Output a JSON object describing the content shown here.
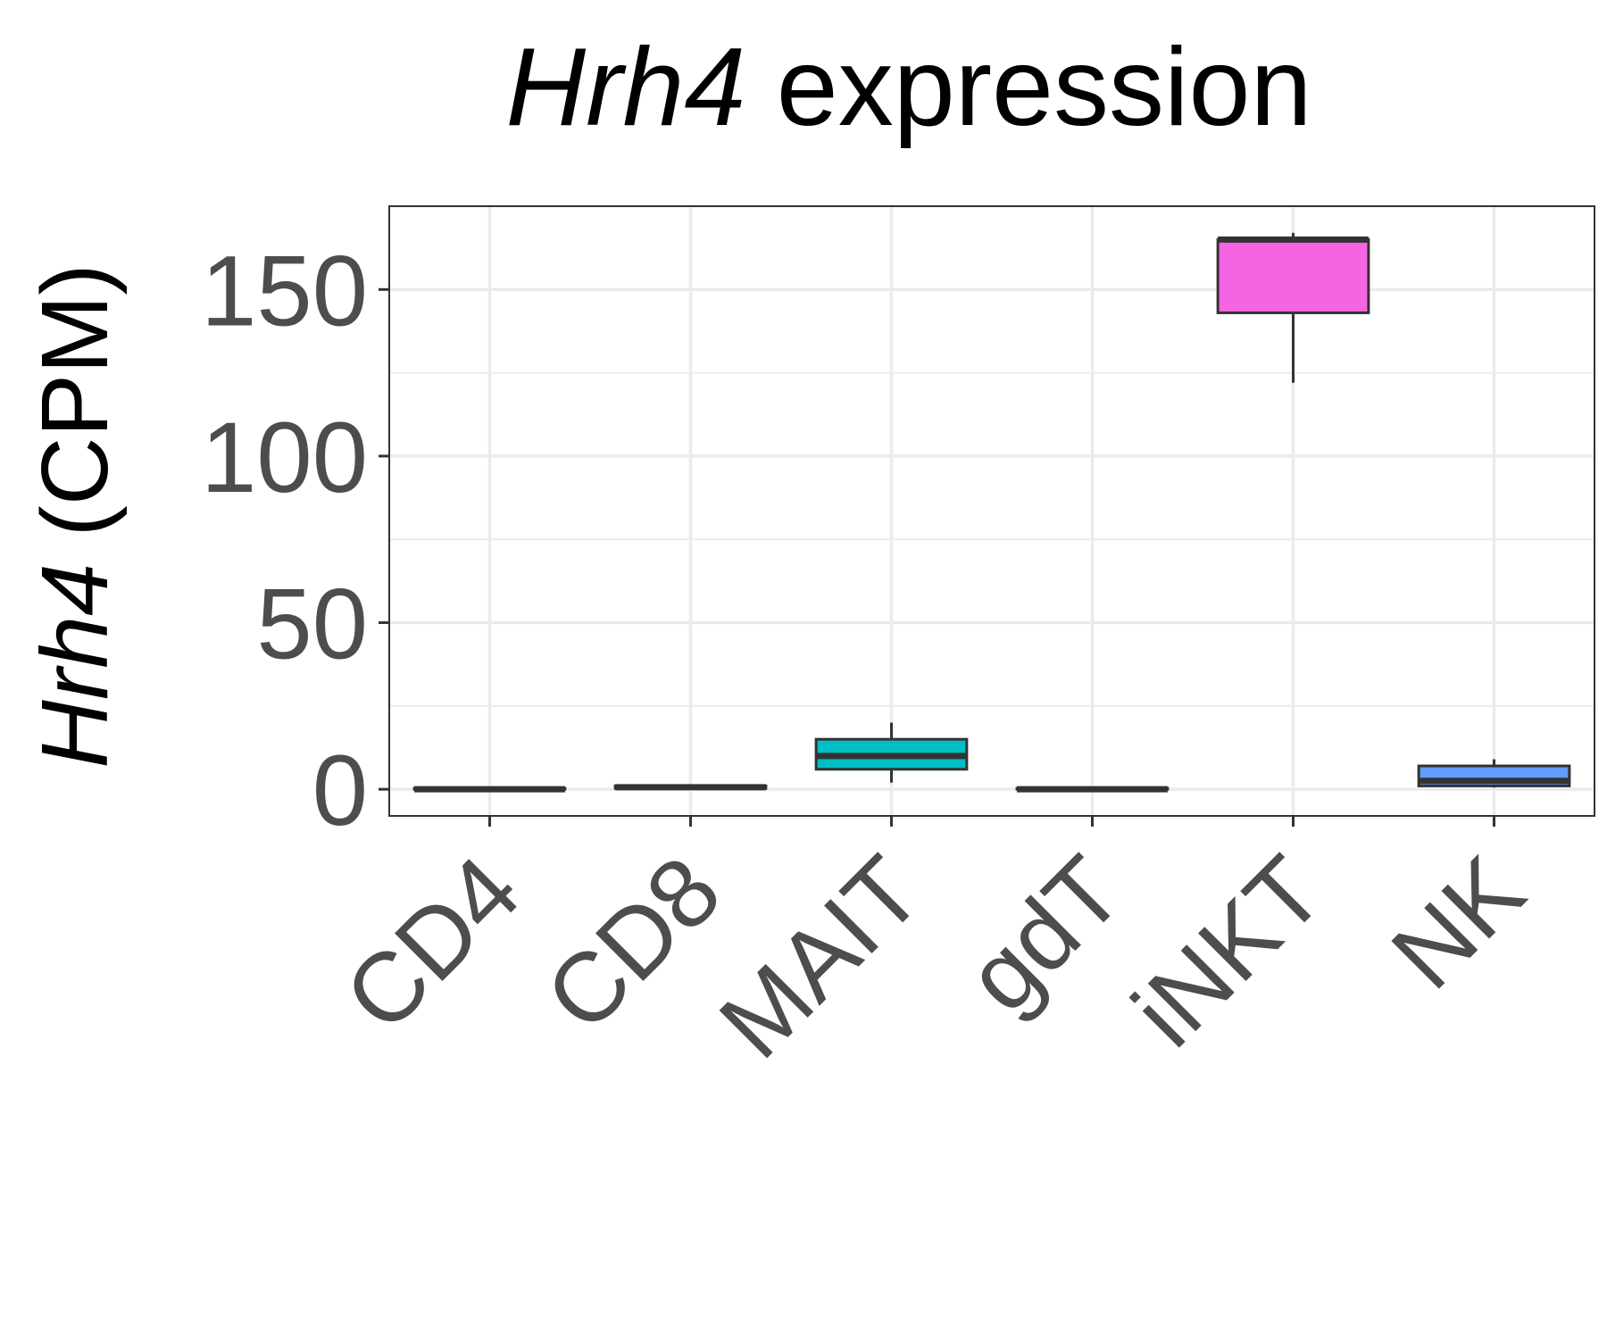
{
  "chart_data": {
    "type": "box",
    "title": {
      "gene": "Hrh4",
      "suffix": " expression"
    },
    "ylabel": {
      "gene": "Hrh4",
      "suffix": " (CPM)"
    },
    "xlabel": "",
    "ylim": [
      -8,
      175
    ],
    "yticks": [
      0,
      50,
      100,
      150
    ],
    "grid": true,
    "categories": [
      "CD4",
      "CD8",
      "MAIT",
      "gdT",
      "iNKT",
      "NK"
    ],
    "boxes": [
      {
        "category": "CD4",
        "min": 0,
        "q1": 0,
        "median": 0,
        "q3": 0.3,
        "max": 0.5,
        "color": "#f8766d"
      },
      {
        "category": "CD8",
        "min": 0.3,
        "q1": 0.3,
        "median": 0.6,
        "q3": 1.0,
        "max": 1.4,
        "color": "#b79f00"
      },
      {
        "category": "MAIT",
        "min": 2,
        "q1": 6,
        "median": 10,
        "q3": 15,
        "max": 20,
        "color": "#00bfc4"
      },
      {
        "category": "gdT",
        "min": 0,
        "q1": 0,
        "median": 0,
        "q3": 0.3,
        "max": 0.5,
        "color": "#00ba38"
      },
      {
        "category": "iNKT",
        "min": 122,
        "q1": 143,
        "median": 165,
        "q3": 165,
        "max": 167,
        "color": "#f564e3"
      },
      {
        "category": "NK",
        "min": 0.5,
        "q1": 1,
        "median": 2.5,
        "q3": 7,
        "max": 9,
        "color": "#619cff"
      }
    ]
  }
}
